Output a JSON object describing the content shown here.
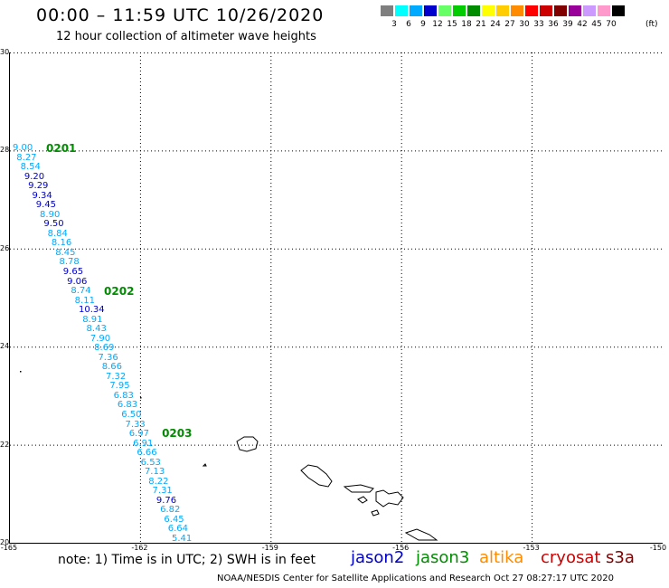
{
  "header": {
    "title": "00:00 – 11:59 UTC 10/26/2020",
    "subtitle": "12 hour collection of altimeter wave heights"
  },
  "legend": {
    "unit": "(ft)",
    "bins": [
      {
        "label": "3",
        "color": "#7f7f7f"
      },
      {
        "label": "6",
        "color": "#00ffff"
      },
      {
        "label": "9",
        "color": "#00aaff"
      },
      {
        "label": "12",
        "color": "#0000cc"
      },
      {
        "label": "15",
        "color": "#66ff66"
      },
      {
        "label": "18",
        "color": "#00cc00"
      },
      {
        "label": "21",
        "color": "#008c00"
      },
      {
        "label": "24",
        "color": "#ffff00"
      },
      {
        "label": "27",
        "color": "#ffcc00"
      },
      {
        "label": "30",
        "color": "#ff8c00"
      },
      {
        "label": "33",
        "color": "#ff0000"
      },
      {
        "label": "36",
        "color": "#cc0000"
      },
      {
        "label": "39",
        "color": "#800000"
      },
      {
        "label": "42",
        "color": "#990099"
      },
      {
        "label": "45",
        "color": "#cc99ff"
      },
      {
        "label": "70",
        "color": "#ff99cc"
      },
      {
        "label": "",
        "color": "#000000"
      }
    ]
  },
  "axes": {
    "lat_labels": [
      "30",
      "28",
      "26",
      "24",
      "22",
      "20"
    ],
    "lon_labels": [
      "-165",
      "-162",
      "-159",
      "-156",
      "-153",
      "-150"
    ]
  },
  "passes": [
    {
      "id": "0201",
      "lat": 28.0
    },
    {
      "id": "0202",
      "lat": 25.1
    },
    {
      "id": "0203",
      "lat": 22.2
    }
  ],
  "track_values": [
    {
      "v": "9.00",
      "c": "#00aaff"
    },
    {
      "v": "8.27",
      "c": "#00aaff"
    },
    {
      "v": "8.54",
      "c": "#00aaff"
    },
    {
      "v": "9.20",
      "c": "#0000cc"
    },
    {
      "v": "9.29",
      "c": "#0000cc"
    },
    {
      "v": "9.34",
      "c": "#0000cc"
    },
    {
      "v": "9.45",
      "c": "#0000cc"
    },
    {
      "v": "8.90",
      "c": "#00aaff"
    },
    {
      "v": "9.50",
      "c": "#0000cc"
    },
    {
      "v": "8.84",
      "c": "#00aaff"
    },
    {
      "v": "8.16",
      "c": "#00aaff"
    },
    {
      "v": "8.45",
      "c": "#00aaff"
    },
    {
      "v": "8.78",
      "c": "#00aaff"
    },
    {
      "v": "9.65",
      "c": "#0000cc"
    },
    {
      "v": "9.06",
      "c": "#0000cc"
    },
    {
      "v": "8.74",
      "c": "#00aaff"
    },
    {
      "v": "8.11",
      "c": "#00aaff"
    },
    {
      "v": "10.34",
      "c": "#0000cc"
    },
    {
      "v": "8.91",
      "c": "#00aaff"
    },
    {
      "v": "8.43",
      "c": "#00aaff"
    },
    {
      "v": "7.90",
      "c": "#00aaff"
    },
    {
      "v": "8.69",
      "c": "#00aaff"
    },
    {
      "v": "7.36",
      "c": "#00aaff"
    },
    {
      "v": "8.66",
      "c": "#00aaff"
    },
    {
      "v": "7.32",
      "c": "#00aaff"
    },
    {
      "v": "7.95",
      "c": "#00aaff"
    },
    {
      "v": "6.83",
      "c": "#00aaff"
    },
    {
      "v": "6.83",
      "c": "#00aaff"
    },
    {
      "v": "6.50",
      "c": "#00aaff"
    },
    {
      "v": "7.33",
      "c": "#00aaff"
    },
    {
      "v": "6.97",
      "c": "#00aaff"
    },
    {
      "v": "6.91",
      "c": "#00aaff"
    },
    {
      "v": "6.66",
      "c": "#00aaff"
    },
    {
      "v": "6.53",
      "c": "#00aaff"
    },
    {
      "v": "7.13",
      "c": "#00aaff"
    },
    {
      "v": "8.22",
      "c": "#00aaff"
    },
    {
      "v": "7.31",
      "c": "#00aaff"
    },
    {
      "v": "9.76",
      "c": "#0000cc"
    },
    {
      "v": "6.82",
      "c": "#00aaff"
    },
    {
      "v": "6.45",
      "c": "#00aaff"
    },
    {
      "v": "6.64",
      "c": "#00aaff"
    },
    {
      "v": "5.41",
      "c": "#00aaff"
    }
  ],
  "note": "note: 1) Time is in UTC; 2) SWH is in feet",
  "satellites": [
    {
      "name": "jason2",
      "color": "#0000cc"
    },
    {
      "name": "jason3",
      "color": "#008c00"
    },
    {
      "name": "altika",
      "color": "#ff8c00"
    },
    {
      "name": "cryosat",
      "color": "#cc0000"
    },
    {
      "name": "s3a",
      "color": "#800000"
    }
  ],
  "credit": "NOAA/NESDIS Center for Satellite Applications and Research    Oct 27 08:27:17 UTC 2020"
}
